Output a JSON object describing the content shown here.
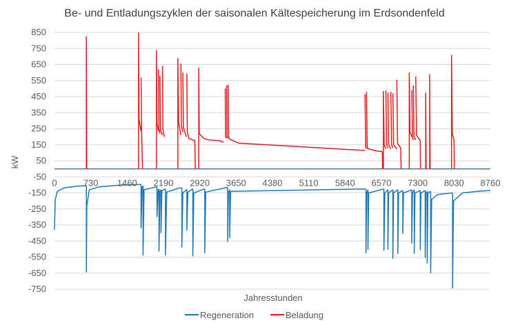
{
  "chart_data": {
    "type": "line",
    "title": "Be- und Entladungszyklen der saisonalen Kältespeicherung im Erdsondenfeld",
    "xlabel": "Jahresstunden",
    "ylabel": "kW",
    "xlim": [
      0,
      8760
    ],
    "ylim": [
      -750,
      850
    ],
    "x_ticks": [
      0,
      730,
      1460,
      2190,
      2920,
      3650,
      4380,
      5110,
      5840,
      6570,
      7300,
      8030,
      8760
    ],
    "y_ticks": [
      850,
      750,
      650,
      550,
      450,
      350,
      250,
      150,
      50,
      -50,
      -150,
      -250,
      -350,
      -450,
      -550,
      -650,
      -750
    ],
    "grid": "horizontal",
    "legend_position": "bottom",
    "colors": {
      "regeneration": "#1f77b4",
      "beladung": "#e31a1c",
      "grid": "#d9d9d9",
      "text": "#595959"
    },
    "series": [
      {
        "name": "Regeneration",
        "color": "#1f77b4",
        "baseline": [
          [
            0,
            -380
          ],
          [
            15,
            -190
          ],
          [
            60,
            -140
          ],
          [
            200,
            -118
          ],
          [
            450,
            -108
          ],
          [
            640,
            -105
          ]
        ],
        "segments": [
          [
            [
              640,
              -105
            ],
            [
              640,
              -645
            ],
            [
              650,
              -230
            ],
            [
              700,
              -130
            ],
            [
              900,
              -112
            ],
            [
              1300,
              -102
            ],
            [
              1700,
              -98
            ],
            [
              1740,
              -97
            ]
          ],
          [
            [
              1740,
              -97
            ],
            [
              1740,
              -370
            ],
            [
              1760,
              -115
            ],
            [
              1780,
              -105
            ]
          ],
          [
            [
              1780,
              -105
            ],
            [
              1780,
              -540
            ],
            [
              1800,
              -130
            ],
            [
              2050,
              -112
            ],
            [
              2060,
              -112
            ]
          ],
          [
            [
              2060,
              -112
            ],
            [
              2060,
              -300
            ],
            [
              2085,
              -130
            ],
            [
              2100,
              -125
            ]
          ],
          [
            [
              2100,
              -125
            ],
            [
              2100,
              -515
            ],
            [
              2120,
              -140
            ],
            [
              2140,
              -130
            ]
          ],
          [
            [
              2140,
              -130
            ],
            [
              2140,
              -400
            ],
            [
              2160,
              -135
            ],
            [
              2230,
              -125
            ]
          ],
          [
            [
              2230,
              -125
            ],
            [
              2230,
              -540
            ],
            [
              2255,
              -145
            ],
            [
              2500,
              -120
            ],
            [
              2560,
              -118
            ]
          ],
          [
            [
              2560,
              -118
            ],
            [
              2560,
              -490
            ],
            [
              2580,
              -150
            ],
            [
              2660,
              -128
            ]
          ],
          [
            [
              2660,
              -128
            ],
            [
              2660,
              -385
            ],
            [
              2680,
              -145
            ],
            [
              2780,
              -125
            ]
          ],
          [
            [
              2780,
              -125
            ],
            [
              2780,
              -545
            ],
            [
              2800,
              -150
            ],
            [
              3010,
              -125
            ],
            [
              3020,
              -125
            ]
          ],
          [
            [
              3020,
              -125
            ],
            [
              3020,
              -525
            ],
            [
              3040,
              -145
            ],
            [
              3480,
              -115
            ]
          ],
          [
            [
              3480,
              -115
            ],
            [
              3480,
              -455
            ],
            [
              3495,
              -145
            ],
            [
              3520,
              -130
            ]
          ],
          [
            [
              3520,
              -130
            ],
            [
              3520,
              -430
            ],
            [
              3540,
              -140
            ],
            [
              6260,
              -125
            ]
          ],
          [
            [
              6260,
              -125
            ],
            [
              6260,
              -525
            ],
            [
              6275,
              -150
            ],
            [
              6300,
              -130
            ]
          ],
          [
            [
              6300,
              -130
            ],
            [
              6300,
              -505
            ],
            [
              6315,
              -150
            ],
            [
              6620,
              -125
            ]
          ],
          [
            [
              6620,
              -125
            ],
            [
              6620,
              -510
            ],
            [
              6640,
              -150
            ],
            [
              6700,
              -130
            ]
          ],
          [
            [
              6700,
              -130
            ],
            [
              6700,
              -505
            ],
            [
              6715,
              -150
            ],
            [
              6800,
              -130
            ]
          ],
          [
            [
              6800,
              -130
            ],
            [
              6800,
              -560
            ],
            [
              6815,
              -150
            ],
            [
              6900,
              -130
            ]
          ],
          [
            [
              6900,
              -130
            ],
            [
              6900,
              -530
            ],
            [
              6915,
              -150
            ],
            [
              7000,
              -135
            ]
          ],
          [
            [
              7000,
              -135
            ],
            [
              7000,
              -405
            ],
            [
              7015,
              -150
            ],
            [
              7180,
              -130
            ]
          ],
          [
            [
              7180,
              -130
            ],
            [
              7180,
              -465
            ],
            [
              7195,
              -150
            ],
            [
              7230,
              -130
            ]
          ],
          [
            [
              7230,
              -130
            ],
            [
              7230,
              -530
            ],
            [
              7245,
              -150
            ],
            [
              7350,
              -135
            ]
          ],
          [
            [
              7350,
              -135
            ],
            [
              7350,
              -505
            ],
            [
              7365,
              -150
            ],
            [
              7450,
              -135
            ]
          ],
          [
            [
              7450,
              -135
            ],
            [
              7450,
              -555
            ],
            [
              7465,
              -150
            ],
            [
              7490,
              -140
            ]
          ],
          [
            [
              7490,
              -140
            ],
            [
              7490,
              -590
            ],
            [
              7505,
              -150
            ],
            [
              7560,
              -140
            ]
          ],
          [
            [
              7560,
              -140
            ],
            [
              7560,
              -650
            ],
            [
              7580,
              -190
            ],
            [
              7700,
              -160
            ],
            [
              8000,
              -150
            ]
          ],
          [
            [
              8000,
              -150
            ],
            [
              8000,
              -745
            ],
            [
              8020,
              -200
            ],
            [
              8200,
              -150
            ],
            [
              8500,
              -140
            ],
            [
              8760,
              -135
            ]
          ]
        ]
      },
      {
        "name": "Beladung",
        "color": "#e31a1c",
        "baseline_value": 0,
        "spikes": [
          [
            [
              640,
              0
            ],
            [
              640,
              825
            ],
            [
              648,
              0
            ]
          ],
          [
            [
              1690,
              0
            ],
            [
              1690,
              850
            ],
            [
              1700,
              310
            ],
            [
              1740,
              235
            ]
          ],
          [
            [
              1740,
              570
            ],
            [
              1750,
              240
            ],
            [
              1770,
              0
            ]
          ],
          [
            [
              2050,
              0
            ],
            [
              2050,
              740
            ],
            [
              2060,
              285
            ],
            [
              2090,
              235
            ]
          ],
          [
            [
              2090,
              620
            ],
            [
              2100,
              250
            ],
            [
              2120,
              220
            ]
          ],
          [
            [
              2120,
              580
            ],
            [
              2130,
              240
            ],
            [
              2170,
              210
            ]
          ],
          [
            [
              2170,
              640
            ],
            [
              2180,
              240
            ],
            [
              2210,
              200
            ]
          ],
          [
            [
              2480,
              0
            ],
            [
              2480,
              690
            ],
            [
              2495,
              290
            ],
            [
              2540,
              210
            ]
          ],
          [
            [
              2540,
              655
            ],
            [
              2550,
              270
            ],
            [
              2580,
              230
            ]
          ],
          [
            [
              2580,
              600
            ],
            [
              2590,
              260
            ],
            [
              2650,
              200
            ]
          ],
          [
            [
              2660,
              595
            ],
            [
              2670,
              230
            ],
            [
              2700,
              190
            ],
            [
              2820,
              175
            ]
          ],
          [
            [
              2820,
              180
            ],
            [
              2830,
              0
            ]
          ],
          [
            [
              2900,
              0
            ],
            [
              2900,
              630
            ],
            [
              2910,
              220
            ],
            [
              3000,
              190
            ],
            [
              3100,
              180
            ]
          ],
          [
            [
              3100,
              180
            ],
            [
              3320,
              175
            ],
            [
              3400,
              165
            ]
          ],
          [
            [
              3430,
              500
            ],
            [
              3440,
              200
            ],
            [
              3460,
              190
            ]
          ],
          [
            [
              3460,
              520
            ],
            [
              3470,
              200
            ],
            [
              3490,
              190
            ]
          ],
          [
            [
              3490,
              525
            ],
            [
              3500,
              200
            ],
            [
              3520,
              185
            ],
            [
              3700,
              160
            ],
            [
              6220,
              115
            ],
            [
              6240,
              115
            ]
          ],
          [
            [
              6240,
              465
            ],
            [
              6255,
              140
            ],
            [
              6270,
              125
            ]
          ],
          [
            [
              6270,
              480
            ],
            [
              6285,
              140
            ],
            [
              6300,
              125
            ],
            [
              6500,
              110
            ],
            [
              6590,
              108
            ]
          ],
          [
            [
              6590,
              108
            ],
            [
              6595,
              0
            ]
          ],
          [
            [
              6610,
              0
            ],
            [
              6610,
              485
            ],
            [
              6625,
              150
            ],
            [
              6660,
              125
            ]
          ],
          [
            [
              6660,
              490
            ],
            [
              6675,
              150
            ],
            [
              6700,
              130
            ]
          ],
          [
            [
              6700,
              475
            ],
            [
              6715,
              150
            ],
            [
              6760,
              125
            ]
          ],
          [
            [
              6760,
              480
            ],
            [
              6775,
              150
            ],
            [
              6800,
              130
            ]
          ],
          [
            [
              6800,
              470
            ],
            [
              6815,
              150
            ],
            [
              6880,
              125
            ]
          ],
          [
            [
              6880,
              555
            ],
            [
              6895,
              160
            ],
            [
              6960,
              130
            ]
          ],
          [
            [
              6960,
              130
            ],
            [
              6965,
              0
            ]
          ],
          [
            [
              7130,
              0
            ],
            [
              7130,
              600
            ],
            [
              7145,
              230
            ],
            [
              7180,
              200
            ]
          ],
          [
            [
              7180,
              490
            ],
            [
              7195,
              200
            ],
            [
              7210,
              180
            ]
          ],
          [
            [
              7210,
              520
            ],
            [
              7225,
              200
            ],
            [
              7260,
              180
            ]
          ],
          [
            [
              7260,
              575
            ],
            [
              7275,
              210
            ],
            [
              7350,
              175
            ]
          ],
          [
            [
              7350,
              175
            ],
            [
              7355,
              0
            ]
          ],
          [
            [
              7460,
              0
            ],
            [
              7460,
              475
            ],
            [
              7470,
              0
            ]
          ],
          [
            [
              7540,
              0
            ],
            [
              7540,
              590
            ],
            [
              7550,
              0
            ]
          ],
          [
            [
              7980,
              0
            ],
            [
              7980,
              710
            ],
            [
              7995,
              220
            ],
            [
              8030,
              180
            ]
          ],
          [
            [
              8030,
              180
            ],
            [
              8035,
              0
            ]
          ]
        ]
      }
    ]
  },
  "legend": {
    "items": [
      {
        "label": "Regeneration",
        "color": "#1f77b4"
      },
      {
        "label": "Beladung",
        "color": "#e31a1c"
      }
    ]
  }
}
